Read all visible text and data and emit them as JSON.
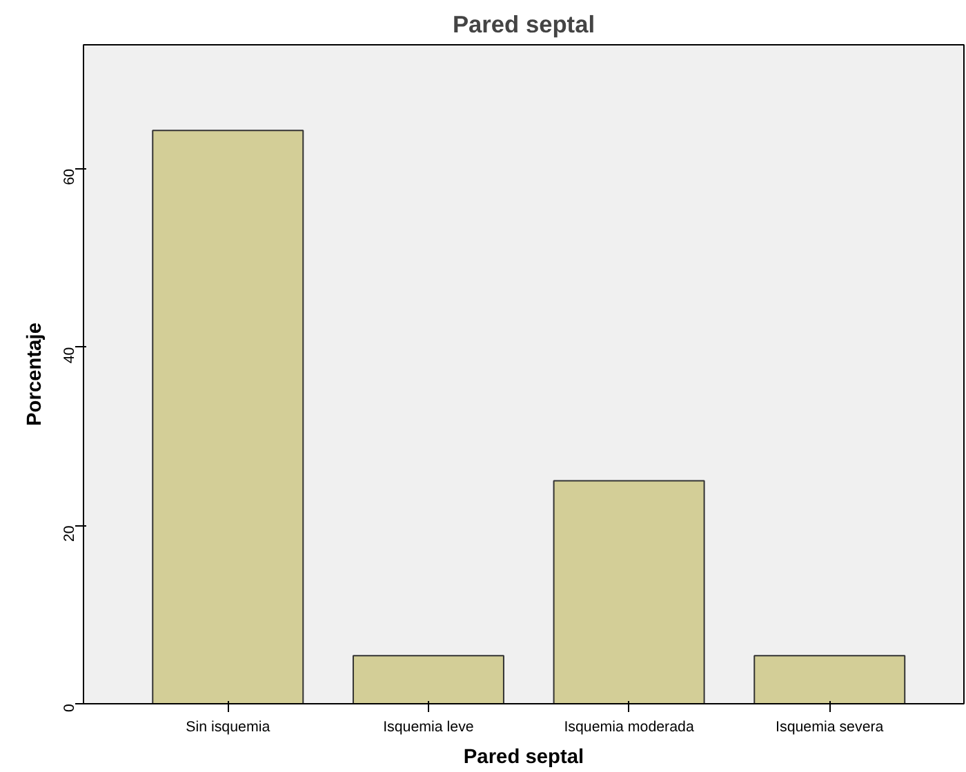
{
  "chart_data": {
    "type": "bar",
    "title": "Pared septal",
    "xlabel": "Pared septal",
    "ylabel": "Porcentaje",
    "categories": [
      "Sin isquemia",
      "Isquemia leve",
      "Isquemia moderada",
      "Isquemia severa"
    ],
    "values": [
      64.3,
      5.4,
      25.0,
      5.4
    ],
    "color": "#d3ce97",
    "ylim": [
      0,
      73.9
    ],
    "yticks": [
      0,
      20,
      40,
      60
    ],
    "grid": false
  }
}
